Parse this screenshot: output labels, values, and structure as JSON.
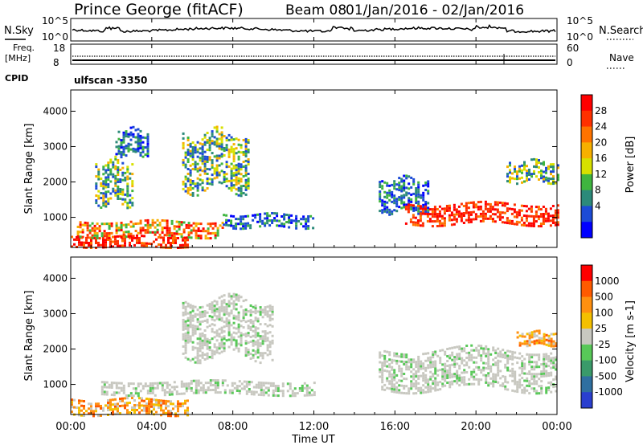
{
  "header": {
    "station": "Prince George (fitACF)",
    "beam": "Beam 08",
    "date_range": "01/Jan/2016 - 02/Jan/2016"
  },
  "strip": {
    "nsky_label": "N.Sky",
    "nsky_ticks": [
      "10^5",
      "10^0"
    ],
    "nsearch_label": "N.Search",
    "nsearch_ticks": [
      "10^5",
      "10^0"
    ],
    "freq_label": "Freq.",
    "freq_unit": "[MHz]",
    "freq_ticks": [
      "18",
      "8"
    ],
    "nave_label": "Nave",
    "nave_ticks": [
      "60",
      "0"
    ],
    "cpid_label": "CPID",
    "cpid_value": "ulfscan -3350"
  },
  "chart_data": [
    {
      "type": "heatmap",
      "panel": "power",
      "ylabel": "Slant Range [km]",
      "y_ticks": [
        1000,
        2000,
        3000,
        4000
      ],
      "ylim": [
        150,
        4600
      ],
      "xlim_hours": [
        0,
        24
      ],
      "colorbar": {
        "label": "Power [dB]",
        "ticks": [
          "28",
          "24",
          "20",
          "16",
          "12",
          "8",
          "4"
        ],
        "colors": [
          "#0000ff",
          "#1c4bd6",
          "#2c8a7a",
          "#3fb53f",
          "#d7e000",
          "#f7b000",
          "#ff7300",
          "#ff3000",
          "#ff0000"
        ]
      },
      "regions": [
        {
          "t": [
            0.0,
            5.8
          ],
          "r": [
            180,
            480
          ],
          "level": "high"
        },
        {
          "t": [
            0.3,
            7.5
          ],
          "r": [
            480,
            900
          ],
          "level": "med-high"
        },
        {
          "t": [
            1.2,
            3.0
          ],
          "r": [
            1400,
            2600
          ],
          "level": "med"
        },
        {
          "t": [
            2.2,
            3.8
          ],
          "r": [
            2800,
            3500
          ],
          "level": "low"
        },
        {
          "t": [
            5.5,
            8.8
          ],
          "r": [
            1800,
            3400
          ],
          "level": "med"
        },
        {
          "t": [
            7.5,
            12.0
          ],
          "r": [
            700,
            1100
          ],
          "level": "low"
        },
        {
          "t": [
            15.2,
            17.6
          ],
          "r": [
            1200,
            2100
          ],
          "level": "low"
        },
        {
          "t": [
            16.5,
            24.0
          ],
          "r": [
            800,
            1400
          ],
          "level": "high"
        },
        {
          "t": [
            21.5,
            24.0
          ],
          "r": [
            2000,
            2600
          ],
          "level": "med"
        }
      ]
    },
    {
      "type": "heatmap",
      "panel": "velocity",
      "ylabel": "Slant Range [km]",
      "y_ticks": [
        1000,
        2000,
        3000,
        4000
      ],
      "ylim": [
        150,
        4600
      ],
      "xlim_hours": [
        0,
        24
      ],
      "colorbar": {
        "label": "Velocity [m s-1]",
        "ticks": [
          "1000",
          "500",
          "100",
          "25",
          "-25",
          "-100",
          "-500",
          "-1000"
        ],
        "colors": [
          "#2a3fcf",
          "#2f6fa0",
          "#3a9a6a",
          "#58c858",
          "#c8c8c0",
          "#f4c000",
          "#ff9010",
          "#ff5a00",
          "#ff0000"
        ]
      },
      "regions": [
        {
          "t": [
            0.0,
            5.8
          ],
          "r": [
            180,
            600
          ],
          "level": "away"
        },
        {
          "t": [
            1.5,
            12.0
          ],
          "r": [
            700,
            1100
          ],
          "level": "zero"
        },
        {
          "t": [
            5.5,
            10.0
          ],
          "r": [
            1800,
            3400
          ],
          "level": "zero"
        },
        {
          "t": [
            15.2,
            24.0
          ],
          "r": [
            900,
            2000
          ],
          "level": "zero"
        },
        {
          "t": [
            22.0,
            24.0
          ],
          "r": [
            2100,
            2500
          ],
          "level": "away"
        }
      ]
    }
  ],
  "x_axis": {
    "ticks": [
      "00:00",
      "04:00",
      "08:00",
      "12:00",
      "16:00",
      "20:00",
      "00:00"
    ],
    "label": "Time UT"
  }
}
